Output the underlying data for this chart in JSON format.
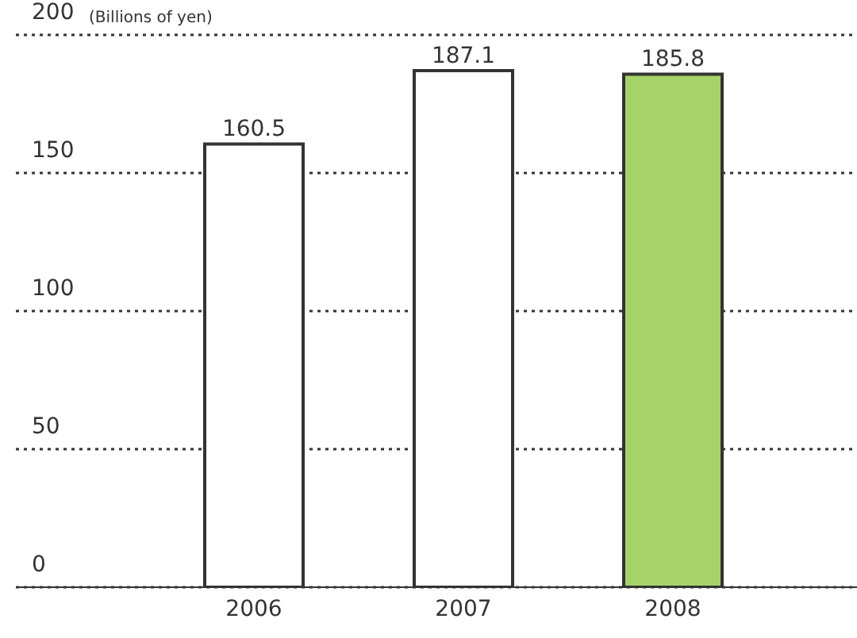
{
  "chart_data": {
    "type": "bar",
    "ylabel": "(Billions of yen)",
    "categories": [
      "2006",
      "2007",
      "2008"
    ],
    "values": [
      160.5,
      187.1,
      185.8
    ],
    "colors": [
      "#ffffff",
      "#ffffff",
      "#a6d26a"
    ],
    "ylim": [
      0,
      200
    ],
    "yticks": [
      0,
      50,
      100,
      150,
      200
    ],
    "grid": "y",
    "data_labels": true
  }
}
